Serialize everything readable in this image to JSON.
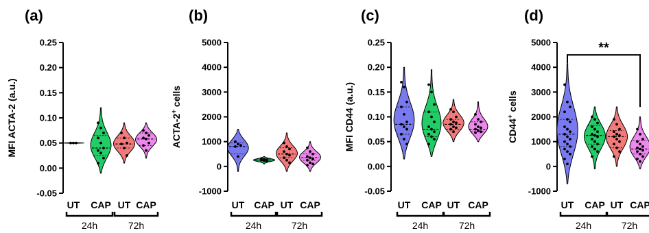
{
  "colors": [
    "#7a7af0",
    "#22cc66",
    "#f27a7a",
    "#ee88ee"
  ],
  "chart_data": [
    {
      "type": "violin",
      "panel_label": "(a)",
      "ylabel": "MFI ACTA-2 (a.u.)",
      "ylabel_sup": "",
      "ylabel_suffix": "",
      "ylim": [
        -0.05,
        0.25
      ],
      "yticks": [
        "-0.05",
        "0.00",
        "0.05",
        "0.10",
        "0.15",
        "0.20",
        "0.25"
      ],
      "categories": [
        "UT",
        "CAP",
        "UT",
        "CAP"
      ],
      "groups": [
        "24h",
        "72h"
      ],
      "series": [
        {
          "min": 0.049,
          "max": 0.051,
          "median": 0.05,
          "q1": 0.05,
          "q3": 0.05,
          "points": [
            0.05,
            0.05,
            0.05
          ]
        },
        {
          "min": -0.01,
          "max": 0.12,
          "median": 0.04,
          "q1": 0.025,
          "q3": 0.065,
          "points": [
            0.09,
            0.08,
            0.07,
            0.06,
            0.05,
            0.04,
            0.035,
            0.03,
            0.02,
            0.01
          ]
        },
        {
          "min": 0.01,
          "max": 0.09,
          "median": 0.048,
          "q1": 0.04,
          "q3": 0.06,
          "points": [
            0.07,
            0.06,
            0.05,
            0.048,
            0.04,
            0.025
          ]
        },
        {
          "min": 0.02,
          "max": 0.09,
          "median": 0.058,
          "q1": 0.045,
          "q3": 0.07,
          "points": [
            0.075,
            0.07,
            0.065,
            0.06,
            0.058,
            0.05,
            0.045,
            0.035
          ]
        }
      ],
      "significance": null
    },
    {
      "type": "violin",
      "panel_label": "(b)",
      "ylabel": "ACTA-2",
      "ylabel_sup": "+",
      "ylabel_suffix": " cells",
      "ylim": [
        -1000,
        5000
      ],
      "yticks": [
        "-1000",
        "0",
        "1000",
        "2000",
        "3000",
        "4000",
        "5000"
      ],
      "categories": [
        "UT",
        "CAP",
        "UT",
        "CAP"
      ],
      "groups": [
        "24h",
        "72h"
      ],
      "series": [
        {
          "min": -200,
          "max": 1500,
          "median": 800,
          "q1": 500,
          "q3": 950,
          "points": [
            1000,
            900,
            850,
            800,
            400
          ]
        },
        {
          "min": 100,
          "max": 400,
          "median": 260,
          "q1": 220,
          "q3": 300,
          "points": [
            320,
            290,
            270,
            250,
            230,
            200
          ]
        },
        {
          "min": -200,
          "max": 1350,
          "median": 500,
          "q1": 350,
          "q3": 750,
          "points": [
            950,
            800,
            700,
            600,
            500,
            450,
            350,
            250,
            150
          ]
        },
        {
          "min": -200,
          "max": 1000,
          "median": 350,
          "q1": 250,
          "q3": 500,
          "points": [
            750,
            600,
            500,
            400,
            350,
            300,
            250,
            150,
            100,
            50
          ]
        }
      ],
      "significance": null
    },
    {
      "type": "violin",
      "panel_label": "(c)",
      "ylabel": "MFI CD44 (a.u.)",
      "ylabel_sup": "",
      "ylabel_suffix": "",
      "ylim": [
        -0.05,
        0.25
      ],
      "yticks": [
        "-0.05",
        "0.00",
        "0.05",
        "0.10",
        "0.15",
        "0.20",
        "0.25"
      ],
      "categories": [
        "UT",
        "CAP",
        "UT",
        "CAP"
      ],
      "groups": [
        "24h",
        "72h"
      ],
      "series": [
        {
          "min": 0.015,
          "max": 0.2,
          "median": 0.085,
          "q1": 0.065,
          "q3": 0.12,
          "points": [
            0.17,
            0.16,
            0.13,
            0.12,
            0.105,
            0.09,
            0.085,
            0.08,
            0.075,
            0.065,
            0.055,
            0.045
          ]
        },
        {
          "min": 0.02,
          "max": 0.195,
          "median": 0.075,
          "q1": 0.06,
          "q3": 0.11,
          "points": [
            0.165,
            0.15,
            0.125,
            0.11,
            0.1,
            0.09,
            0.08,
            0.075,
            0.07,
            0.065,
            0.06,
            0.055,
            0.045
          ]
        },
        {
          "min": 0.05,
          "max": 0.135,
          "median": 0.085,
          "q1": 0.075,
          "q3": 0.095,
          "points": [
            0.115,
            0.11,
            0.1,
            0.095,
            0.09,
            0.088,
            0.085,
            0.08,
            0.078,
            0.075,
            0.07
          ]
        },
        {
          "min": 0.05,
          "max": 0.13,
          "median": 0.075,
          "q1": 0.07,
          "q3": 0.09,
          "points": [
            0.105,
            0.095,
            0.09,
            0.085,
            0.08,
            0.078,
            0.075,
            0.072,
            0.07,
            0.068
          ]
        }
      ],
      "significance": null
    },
    {
      "type": "violin",
      "panel_label": "(d)",
      "ylabel": "CD44",
      "ylabel_sup": "+",
      "ylabel_suffix": " cells",
      "ylim": [
        -1000,
        5000
      ],
      "yticks": [
        "-1000",
        "0",
        "1000",
        "2000",
        "3000",
        "4000",
        "5000"
      ],
      "categories": [
        "UT",
        "CAP",
        "UT",
        "CAP"
      ],
      "groups": [
        "24h",
        "72h"
      ],
      "series": [
        {
          "min": -700,
          "max": 4150,
          "median": 1300,
          "q1": 800,
          "q3": 1900,
          "points": [
            3300,
            2600,
            2400,
            2200,
            1900,
            1800,
            1600,
            1500,
            1400,
            1300,
            1200,
            1100,
            1000,
            900,
            800,
            700,
            600,
            500,
            300,
            100
          ]
        },
        {
          "min": -100,
          "max": 2400,
          "median": 1250,
          "q1": 900,
          "q3": 1650,
          "points": [
            2000,
            1900,
            1750,
            1600,
            1500,
            1400,
            1300,
            1250,
            1200,
            1100,
            1000,
            900,
            800,
            700,
            600,
            400
          ]
        },
        {
          "min": 0,
          "max": 2400,
          "median": 1200,
          "q1": 750,
          "q3": 1450,
          "points": [
            1900,
            1700,
            1500,
            1400,
            1300,
            1250,
            1200,
            1100,
            1000,
            900,
            750,
            600,
            400
          ]
        },
        {
          "min": -100,
          "max": 2000,
          "median": 700,
          "q1": 500,
          "q3": 1050,
          "points": [
            1500,
            1300,
            1100,
            1000,
            900,
            800,
            750,
            700,
            650,
            600,
            500,
            400,
            300,
            200
          ]
        }
      ],
      "significance": {
        "label": "**",
        "from": 0,
        "to": 3,
        "y": 4500
      }
    }
  ]
}
